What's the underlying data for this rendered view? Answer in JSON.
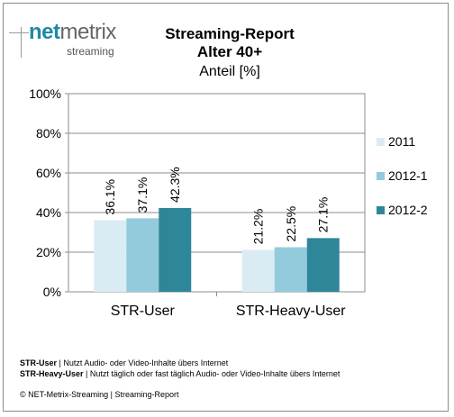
{
  "logo": {
    "net": "net",
    "metrix": "metrix",
    "sub": "streaming"
  },
  "chart_data": {
    "type": "bar",
    "title": "Streaming-Report",
    "title_line2": "Alter 40+",
    "subtitle": "Anteil [%]",
    "categories": [
      "STR-User",
      "STR-Heavy-User"
    ],
    "series": [
      {
        "name": "2011",
        "values": [
          36.1,
          21.2
        ],
        "labels": [
          "36.1%",
          "21.2%"
        ],
        "color": "#daecf3"
      },
      {
        "name": "2012-1",
        "values": [
          37.1,
          22.5
        ],
        "labels": [
          "37.1%",
          "22.5%"
        ],
        "color": "#93cbdc"
      },
      {
        "name": "2012-2",
        "values": [
          42.3,
          27.1
        ],
        "labels": [
          "42.3%",
          "27.1%"
        ],
        "color": "#2e8699"
      }
    ],
    "yticks": [
      "0%",
      "20%",
      "40%",
      "60%",
      "80%",
      "100%"
    ],
    "ylim": [
      0,
      100
    ],
    "grid": true,
    "legend": "right"
  },
  "footnotes": [
    {
      "term": "STR-User",
      "text": " | Nutzt Audio- oder Video-Inhalte übers Internet"
    },
    {
      "term": "STR-Heavy-User",
      "text": " | Nutzt täglich oder fast täglich Audio- oder Video-Inhalte übers Internet"
    }
  ],
  "copyright": "© NET-Metrix-Streaming | Streaming-Report"
}
